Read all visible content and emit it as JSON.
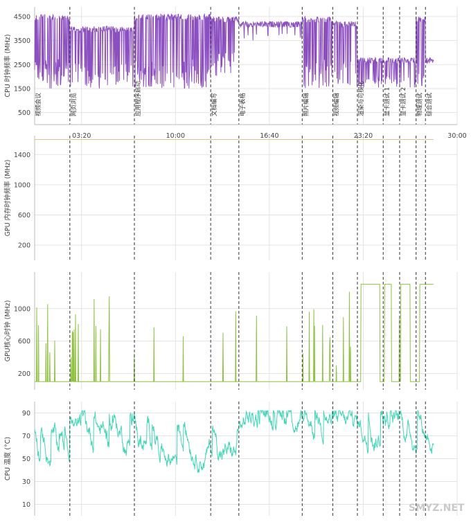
{
  "chart_data": {
    "type": "line",
    "x_range_seconds": [
      0,
      1800
    ],
    "x_tick_labels": [
      "03:20",
      "10:00",
      "16:40",
      "23:20",
      "30:00"
    ],
    "x_tick_seconds": [
      200,
      600,
      1000,
      1400,
      1800
    ],
    "segments": [
      {
        "label": "视频会议",
        "t": 0
      },
      {
        "label": "网页浏览",
        "t": 150
      },
      {
        "label": "应用程序启动",
        "t": 425
      },
      {
        "label": "文档编写",
        "t": 750
      },
      {
        "label": "电子表格",
        "t": 870
      },
      {
        "label": "照片编辑",
        "t": 1140
      },
      {
        "label": "视频编辑",
        "t": 1270
      },
      {
        "label": "渲染与可视化",
        "t": 1375
      },
      {
        "label": "显卡测试 1",
        "t": 1485
      },
      {
        "label": "显卡测试 2",
        "t": 1555
      },
      {
        "label": "物理测试",
        "t": 1625
      },
      {
        "label": "综合测试",
        "t": 1665
      }
    ],
    "panels": [
      {
        "id": "cpu-clock",
        "ylabel": "CPU 时钟频率 (MHz)",
        "y_ticks": [
          500,
          1500,
          2500,
          3500,
          4500
        ],
        "ylim": [
          0,
          4900
        ],
        "color": "#8c4fc2",
        "series": [
          {
            "seg": [
              0,
              150
            ],
            "base": 4600,
            "low": 1500,
            "dips": 0.55
          },
          {
            "seg": [
              150,
              425
            ],
            "base": 4100,
            "low": 1500,
            "dips": 0.3
          },
          {
            "seg": [
              425,
              750
            ],
            "base": 4600,
            "low": 1500,
            "dips": 0.45
          },
          {
            "seg": [
              750,
              870
            ],
            "base": 4500,
            "low": 2000,
            "dips": 0.3
          },
          {
            "seg": [
              870,
              1140
            ],
            "base": 4300,
            "low": 3500,
            "dips": 0.08
          },
          {
            "seg": [
              1140,
              1270
            ],
            "base": 4500,
            "low": 1500,
            "dips": 0.45
          },
          {
            "seg": [
              1270,
              1375
            ],
            "base": 4300,
            "low": 1600,
            "dips": 0.35
          },
          {
            "seg": [
              1375,
              1485
            ],
            "base": 2800,
            "low": 1500,
            "dips": 0.3
          },
          {
            "seg": [
              1485,
              1555
            ],
            "base": 2800,
            "low": 1500,
            "dips": 0.3
          },
          {
            "seg": [
              1555,
              1625
            ],
            "base": 2800,
            "low": 1500,
            "dips": 0.25
          },
          {
            "seg": [
              1625,
              1665
            ],
            "base": 4500,
            "low": 1500,
            "dips": 0.45
          },
          {
            "seg": [
              1665,
              1700
            ],
            "base": 2800,
            "low": 2800,
            "dips": 0.0
          }
        ]
      },
      {
        "id": "gpu-mem",
        "ylabel": "GPU 内存时钟频率 (MHz)",
        "y_ticks": [
          200,
          600,
          1000,
          1400
        ],
        "ylim": [
          0,
          1650
        ],
        "color": "#e0c48a",
        "flat_value": 1600
      },
      {
        "id": "gpu-core",
        "ylabel": "GPU核心时钟 (MHz)",
        "y_ticks": [
          200,
          600,
          1000
        ],
        "ylim": [
          0,
          1450
        ],
        "color": "#8dc33d",
        "idle": 100,
        "peak": 1300,
        "on_ranges": [
          [
            1390,
            1470
          ],
          [
            1490,
            1520
          ],
          [
            1560,
            1600
          ],
          [
            1640,
            1700
          ]
        ]
      },
      {
        "id": "cpu-temp",
        "ylabel": "CPU 温度 (°C)",
        "y_ticks": [
          10,
          30,
          50,
          70,
          90
        ],
        "ylim": [
          0,
          100
        ],
        "color": "#3fd8b8"
      }
    ]
  },
  "watermark": "SMYZ.NET"
}
